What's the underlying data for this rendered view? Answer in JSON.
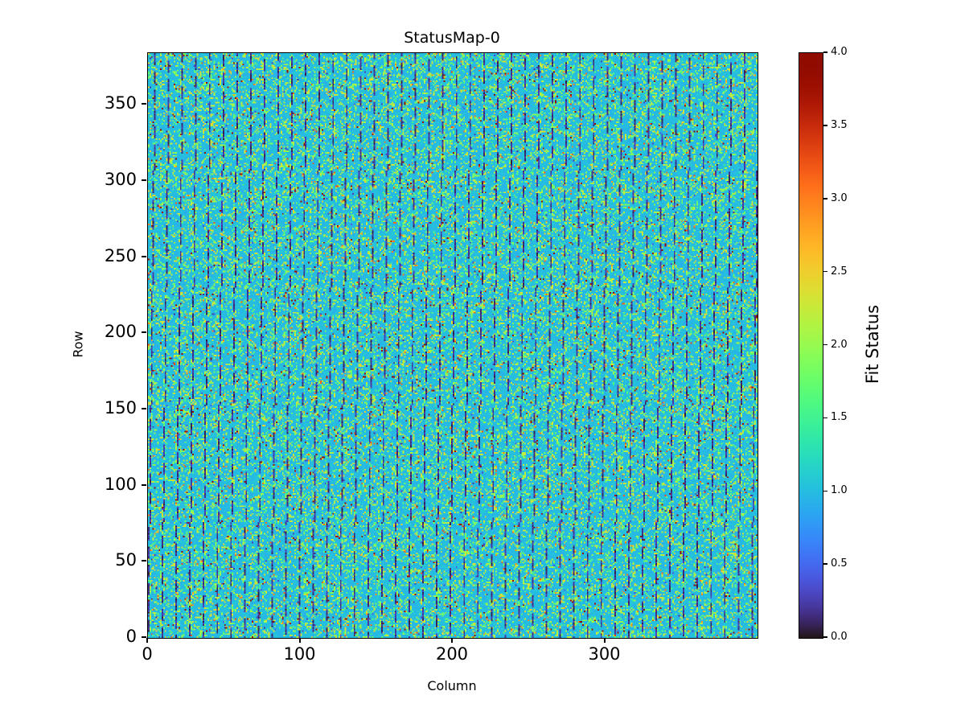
{
  "page": {
    "background_color": "#ffffff",
    "text_color": "#000000"
  },
  "chart_data": {
    "type": "heatmap",
    "title": "StatusMap-0",
    "xlabel": "Column",
    "ylabel": "Row",
    "colorbar_label": "Fit Status",
    "x_ticks": [
      0,
      100,
      200,
      300
    ],
    "y_ticks": [
      0,
      50,
      100,
      150,
      200,
      250,
      300,
      350
    ],
    "x_range": [
      0,
      400
    ],
    "y_range": [
      0,
      384
    ],
    "grid_cols": 400,
    "grid_rows": 384,
    "value_range": [
      0,
      4
    ],
    "colorbar_ticks": [
      "0.0",
      "0.5",
      "1.0",
      "1.5",
      "2.0",
      "2.5",
      "3.0",
      "3.5",
      "4.0"
    ],
    "colormap": "turbo",
    "colormap_key_colors": {
      "v0": "#23171b",
      "v1": "#26bde2",
      "v2": "#95fb51",
      "v3": "#fd8029",
      "v4": "#900c00"
    },
    "heatmap_pattern": {
      "description": "Dense random field: background fit status ~1 (cyan) speckled with ~2 (yellow-green), sparse 3 (orange) and 4 (dark red); dashed near-vertical dark stripes of status 0 repeating every ~9 columns with a slight slant",
      "base_value": 1,
      "seed": 1337,
      "stripe_period": 9,
      "stripe_offset": 4,
      "stripe_slant_cols": 5,
      "dash_on_rows": 8,
      "dash_off_rows": 4,
      "prob_v2": 0.2,
      "prob_v3": 0.013,
      "prob_v4": 0.01,
      "prob_v0_speckle": 0.008,
      "near_stripe_v2_boost": 1.5
    }
  }
}
